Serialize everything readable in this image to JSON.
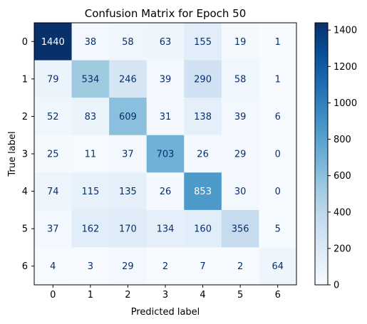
{
  "chart_data": {
    "type": "heatmap",
    "title": "Confusion Matrix for Epoch 50",
    "xlabel": "Predicted label",
    "ylabel": "True label",
    "x_categories": [
      "0",
      "1",
      "2",
      "3",
      "4",
      "5",
      "6"
    ],
    "y_categories": [
      "0",
      "1",
      "2",
      "3",
      "4",
      "5",
      "6"
    ],
    "values": [
      [
        1440,
        38,
        58,
        63,
        155,
        19,
        1
      ],
      [
        79,
        534,
        246,
        39,
        290,
        58,
        1
      ],
      [
        52,
        83,
        609,
        31,
        138,
        39,
        6
      ],
      [
        25,
        11,
        37,
        703,
        26,
        29,
        0
      ],
      [
        74,
        115,
        135,
        26,
        853,
        30,
        0
      ],
      [
        37,
        162,
        170,
        134,
        160,
        356,
        5
      ],
      [
        4,
        3,
        29,
        2,
        7,
        2,
        64
      ]
    ],
    "colormap": "Blues",
    "color_min": 0,
    "color_max": 1440,
    "colorbar_ticks": [
      0,
      200,
      400,
      600,
      800,
      1000,
      1200,
      1400
    ],
    "colors": {
      "low": "#f7fbff",
      "high": "#08306b",
      "text_light": "#ffffff",
      "text_dark": "#08306b"
    }
  }
}
